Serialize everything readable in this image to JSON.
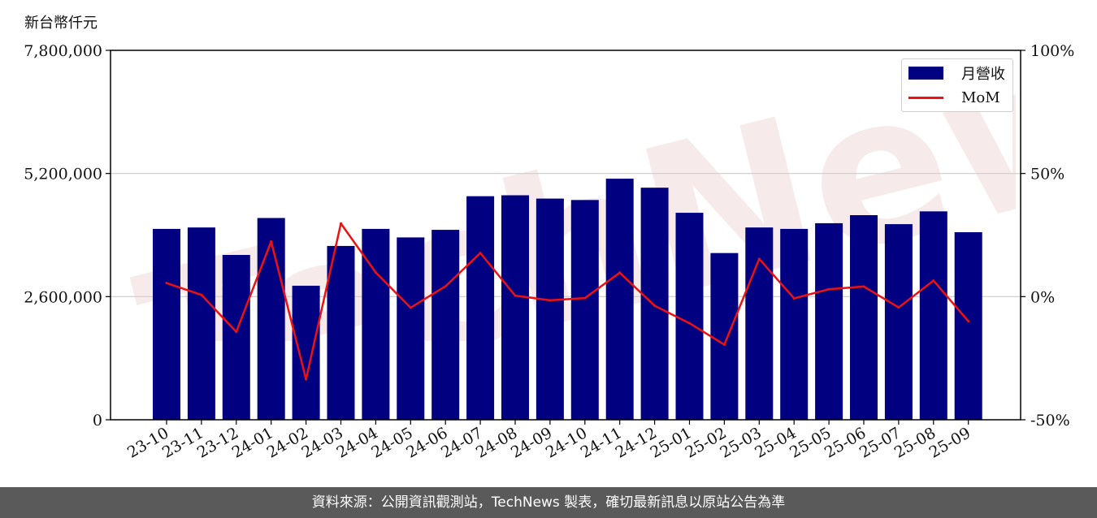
{
  "unit_label": "新台幣仟元",
  "footer_text": "資料來源：公開資訊觀測站，TechNews 製表，確切最新訊息以原站公告為準",
  "watermark_text": "TechNews",
  "colors": {
    "bar": "#000080",
    "line": "#ee1111",
    "footer_bg": "#5a5a5a",
    "grid": "#cccccc"
  },
  "chart_data": {
    "type": "bar",
    "categories": [
      "23-10",
      "23-11",
      "23-12",
      "24-01",
      "24-02",
      "24-03",
      "24-04",
      "24-05",
      "24-06",
      "24-07",
      "24-08",
      "24-09",
      "24-10",
      "24-11",
      "24-12",
      "25-01",
      "25-02",
      "25-03",
      "25-04",
      "25-05",
      "25-06",
      "25-07",
      "25-08",
      "25-09"
    ],
    "series": [
      {
        "name": "月營收",
        "axis": "left",
        "kind": "bar",
        "values": [
          4030000,
          4060000,
          3480000,
          4260000,
          2830000,
          3670000,
          4030000,
          3850000,
          4010000,
          4720000,
          4740000,
          4670000,
          4640000,
          5090000,
          4900000,
          4370000,
          3520000,
          4060000,
          4030000,
          4150000,
          4320000,
          4130000,
          4400000,
          3960000
        ]
      },
      {
        "name": "MoM",
        "axis": "right",
        "kind": "line",
        "values": [
          5.5,
          0.7,
          -14.3,
          22.4,
          -33.6,
          29.7,
          9.8,
          -4.5,
          4.2,
          17.7,
          0.4,
          -1.5,
          -0.6,
          9.7,
          -3.7,
          -10.8,
          -19.5,
          15.3,
          -0.7,
          3.0,
          4.1,
          -4.4,
          6.5,
          -10.0
        ]
      }
    ],
    "left_axis": {
      "ylim": [
        0,
        7800000
      ],
      "ticks": [
        0,
        2600000,
        5200000,
        7800000
      ],
      "tick_labels": [
        "0",
        "2,600,000",
        "5,200,000",
        "7,800,000"
      ]
    },
    "right_axis": {
      "ylim": [
        -50,
        100
      ],
      "ticks": [
        -50,
        0,
        50,
        100
      ],
      "tick_labels": [
        "-50%",
        "0%",
        "50%",
        "100%"
      ]
    },
    "grid": "horizontal",
    "legend_position": "top-right"
  }
}
